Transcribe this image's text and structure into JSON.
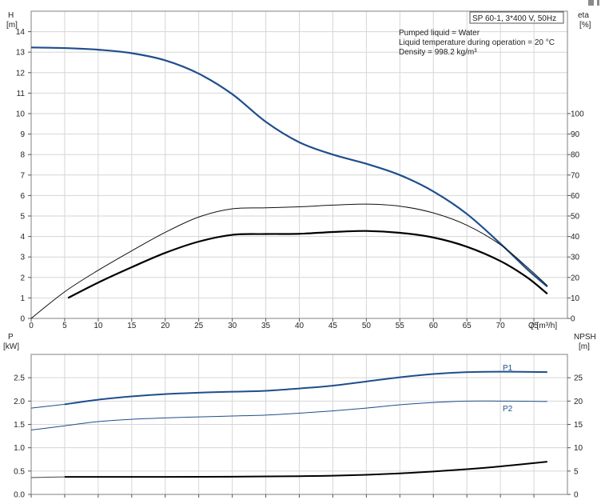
{
  "chart_data": [
    {
      "type": "line",
      "title": "SP 60-1, 3*400 V, 50Hz",
      "annotations": [
        "Pumped liquid = Water",
        "Liquid temperature during operation = 20 °C",
        "Density = 998.2 kg/m³"
      ],
      "xlabel": "Q [m³/h]",
      "ylabel_left": [
        "H",
        "[m]"
      ],
      "ylabel_right": [
        "eta",
        "[%]"
      ],
      "xlim": [
        0,
        80
      ],
      "ylim_left": [
        0,
        15
      ],
      "ylim_right": [
        0,
        150
      ],
      "x_ticks": [
        0,
        5,
        10,
        15,
        20,
        25,
        30,
        35,
        40,
        45,
        50,
        55,
        60,
        65,
        70,
        75
      ],
      "y_ticks_left": [
        0,
        1,
        2,
        3,
        4,
        5,
        6,
        7,
        8,
        9,
        10,
        11,
        12,
        13,
        14
      ],
      "y_ticks_right": [
        0,
        10,
        20,
        30,
        40,
        50,
        60,
        70,
        80,
        90,
        100
      ],
      "grid": true,
      "series": [
        {
          "axis": "left",
          "color": "#1f4e8c",
          "width": 2.2,
          "x": [
            0,
            5,
            10,
            15,
            20,
            25,
            30,
            35,
            40,
            45,
            50,
            55,
            60,
            65,
            70,
            74,
            77
          ],
          "y": [
            13.23,
            13.2,
            13.12,
            12.95,
            12.6,
            11.95,
            10.95,
            9.6,
            8.6,
            8.0,
            7.55,
            7.0,
            6.2,
            5.1,
            3.65,
            2.4,
            1.55
          ]
        },
        {
          "axis": "right",
          "color": "#111111",
          "width": 1,
          "x": [
            0,
            5,
            10,
            15,
            20,
            25,
            30,
            35,
            40,
            45,
            50,
            55,
            60,
            65,
            70,
            74,
            77
          ],
          "y": [
            0,
            13,
            23.5,
            33,
            42,
            49.5,
            53.5,
            54,
            54.5,
            55.3,
            55.8,
            54.8,
            51.5,
            45.5,
            36,
            25,
            16
          ]
        },
        {
          "axis": "right",
          "color": "#000000",
          "width": 2.2,
          "x": [
            5.5,
            10,
            15,
            20,
            25,
            30,
            35,
            40,
            45,
            50,
            55,
            60,
            65,
            70,
            74,
            77
          ],
          "y": [
            10,
            17.5,
            25,
            32,
            37.5,
            40.8,
            41.2,
            41.3,
            42.2,
            42.7,
            41.8,
            39.5,
            35,
            28,
            20,
            12
          ]
        }
      ]
    },
    {
      "type": "line",
      "ylabel_left": [
        "P",
        "[kW]"
      ],
      "ylabel_right": [
        "NPSH",
        "[m]"
      ],
      "xlim": [
        0,
        80
      ],
      "ylim_left": [
        0,
        3
      ],
      "ylim_right": [
        0,
        30
      ],
      "y_ticks_left": [
        "0.0",
        "0.5",
        "1.0",
        "1.5",
        "2.0",
        "2.5"
      ],
      "y_ticks_right": [
        0,
        5,
        10,
        15,
        20,
        25
      ],
      "grid": true,
      "series": [
        {
          "name": "P1",
          "axis": "left",
          "color": "#1f4e8c",
          "width": 2,
          "x": [
            5,
            10,
            15,
            20,
            25,
            30,
            35,
            40,
            45,
            50,
            55,
            60,
            65,
            70,
            77
          ],
          "y": [
            1.93,
            2.03,
            2.1,
            2.15,
            2.18,
            2.2,
            2.22,
            2.27,
            2.33,
            2.42,
            2.51,
            2.58,
            2.62,
            2.63,
            2.62
          ]
        },
        {
          "axis": "left",
          "color": "#1f4e8c",
          "width": 1,
          "x": [
            0,
            5
          ],
          "y": [
            1.85,
            1.93
          ]
        },
        {
          "name": "P2",
          "axis": "left",
          "color": "#1f4e8c",
          "width": 1,
          "x": [
            0,
            5,
            10,
            15,
            20,
            25,
            30,
            35,
            40,
            45,
            50,
            55,
            60,
            65,
            70,
            77
          ],
          "y": [
            1.38,
            1.47,
            1.56,
            1.61,
            1.64,
            1.66,
            1.68,
            1.7,
            1.74,
            1.79,
            1.85,
            1.92,
            1.97,
            2.0,
            2.0,
            1.99
          ]
        },
        {
          "axis": "right",
          "color": "#000000",
          "width": 2,
          "x": [
            5,
            10,
            20,
            30,
            40,
            45,
            50,
            55,
            60,
            65,
            70,
            77
          ],
          "y": [
            3.75,
            3.75,
            3.75,
            3.8,
            3.9,
            4.0,
            4.2,
            4.5,
            4.9,
            5.4,
            6.0,
            7.0
          ]
        },
        {
          "axis": "right",
          "color": "#444444",
          "width": 1,
          "x": [
            0,
            5
          ],
          "y": [
            3.6,
            3.75
          ]
        }
      ]
    }
  ]
}
